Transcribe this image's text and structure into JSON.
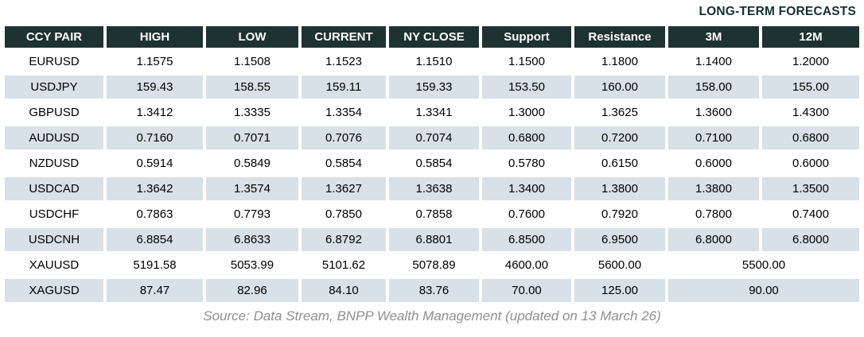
{
  "chart_data": {
    "type": "table",
    "forecast_group_label": "LONG-TERM FORECASTS",
    "columns": [
      "CCY PAIR",
      "HIGH",
      "LOW",
      "CURRENT",
      "NY CLOSE",
      "Support",
      "Resistance",
      "3M",
      "12M"
    ],
    "rows": [
      {
        "pair": "EURUSD",
        "values": [
          "1.1575",
          "1.1508",
          "1.1523",
          "1.1510",
          "1.1500",
          "1.1800",
          "1.1400",
          "1.2000"
        ]
      },
      {
        "pair": "USDJPY",
        "values": [
          "159.43",
          "158.55",
          "159.11",
          "159.33",
          "153.50",
          "160.00",
          "158.00",
          "155.00"
        ]
      },
      {
        "pair": "GBPUSD",
        "values": [
          "1.3412",
          "1.3335",
          "1.3354",
          "1.3341",
          "1.3000",
          "1.3625",
          "1.3600",
          "1.4300"
        ]
      },
      {
        "pair": "AUDUSD",
        "values": [
          "0.7160",
          "0.7071",
          "0.7076",
          "0.7074",
          "0.6800",
          "0.7200",
          "0.7100",
          "0.6800"
        ]
      },
      {
        "pair": "NZDUSD",
        "values": [
          "0.5914",
          "0.5849",
          "0.5854",
          "0.5854",
          "0.5780",
          "0.6150",
          "0.6000",
          "0.6000"
        ]
      },
      {
        "pair": "USDCAD",
        "values": [
          "1.3642",
          "1.3574",
          "1.3627",
          "1.3638",
          "1.3400",
          "1.3800",
          "1.3800",
          "1.3500"
        ]
      },
      {
        "pair": "USDCHF",
        "values": [
          "0.7863",
          "0.7793",
          "0.7850",
          "0.7858",
          "0.7600",
          "0.7920",
          "0.7800",
          "0.7400"
        ]
      },
      {
        "pair": "USDCNH",
        "values": [
          "6.8854",
          "6.8633",
          "6.8792",
          "6.8801",
          "6.8500",
          "6.9500",
          "6.8000",
          "6.8000"
        ]
      },
      {
        "pair": "XAUUSD",
        "values": [
          "5191.58",
          "5053.99",
          "5101.62",
          "5078.89",
          "4600.00",
          "5600.00"
        ],
        "merged_forecast": "5500.00"
      },
      {
        "pair": "XAGUSD",
        "values": [
          "87.47",
          "82.96",
          "84.10",
          "83.76",
          "70.00",
          "125.00"
        ],
        "merged_forecast": "90.00"
      }
    ],
    "source": "Source: Data Stream, BNPP Wealth Management (updated on 13 March 26)"
  },
  "colors": {
    "header_bg": "#1e3231",
    "header_text": "#ffffff",
    "stripe_bg": "#d7e1e7",
    "label_text": "#16302e",
    "source_text": "#8f8f8f",
    "value_text": "#000000"
  }
}
